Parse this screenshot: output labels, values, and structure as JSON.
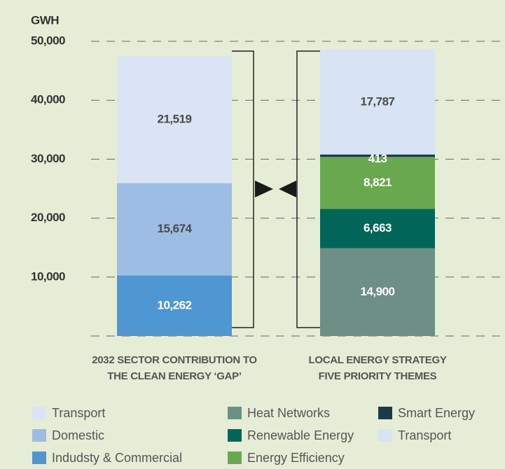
{
  "chart_data": {
    "type": "stacked-bar",
    "y_label": "GWH",
    "categories": [
      "2032 SECTOR CONTRIBUTION TO\nTHE CLEAN ENERGY ‘GAP’",
      "LOCAL ENERGY STRATEGY\nFIVE PRIORITY THEMES"
    ],
    "series": [
      {
        "name": "Indudsty & Commercial",
        "color": "#4f97d3",
        "values": [
          10262,
          null
        ],
        "value_labels": [
          "10,262",
          null
        ]
      },
      {
        "name": "Domestic",
        "color": "#9dbde4",
        "values": [
          15674,
          null
        ],
        "value_labels": [
          "15,674",
          null
        ]
      },
      {
        "name": "Transport",
        "color": "#dae4f4",
        "values": [
          21519,
          null
        ],
        "value_labels": [
          "21,519",
          null
        ]
      },
      {
        "name": "Heat Networks",
        "color": "#6e8f86",
        "values": [
          null,
          14900
        ],
        "value_labels": [
          null,
          "14,900"
        ]
      },
      {
        "name": "Renewable Energy",
        "color": "#00665a",
        "values": [
          null,
          6663
        ],
        "value_labels": [
          null,
          "6,663"
        ]
      },
      {
        "name": "Energy Efficiency",
        "color": "#6aa84f",
        "values": [
          null,
          8821
        ],
        "value_labels": [
          null,
          "8,821"
        ]
      },
      {
        "name": "Smart Energy",
        "color": "#1d3a4c",
        "values": [
          null,
          413
        ],
        "value_labels": [
          null,
          "413"
        ]
      },
      {
        "name": "Transport",
        "color": "#d8e3f3",
        "values": [
          null,
          17787
        ],
        "value_labels": [
          null,
          "17,787"
        ]
      }
    ],
    "ylim": [
      0,
      50000
    ],
    "yticks": [
      {
        "value": 10000,
        "label": "10,000"
      },
      {
        "value": 20000,
        "label": "20,000"
      },
      {
        "value": 30000,
        "label": "30,000"
      },
      {
        "value": 40000,
        "label": "40,000"
      },
      {
        "value": 50000,
        "label": "50,000"
      }
    ],
    "grid": true
  }
}
